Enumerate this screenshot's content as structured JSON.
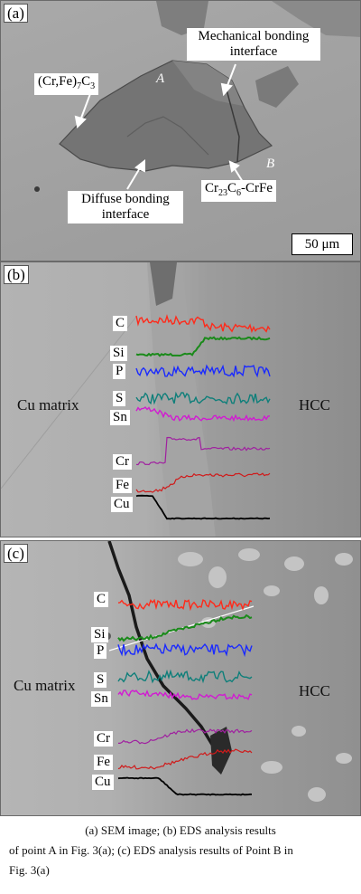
{
  "panel_a": {
    "label": "(a)",
    "callouts": {
      "mechanical": "Mechanical bonding interface",
      "carbide": "(Cr,Fe)7C3",
      "diffuse": "Diffuse bonding interface",
      "cr23": "Cr23C6-CrFe"
    },
    "point_a": "A",
    "point_b": "B",
    "scale_bar": "50 μm"
  },
  "panel_b": {
    "label": "(b)",
    "left_text": "Cu matrix",
    "right_text": "HCC",
    "elements": [
      "C",
      "Si",
      "P",
      "S",
      "Sn",
      "Cr",
      "Fe",
      "Cu"
    ]
  },
  "panel_c": {
    "label": "(c)",
    "left_text": "Cu matrix",
    "right_text": "HCC",
    "elements": [
      "C",
      "Si",
      "P",
      "S",
      "Sn",
      "Cr",
      "Fe",
      "Cu"
    ]
  },
  "caption": {
    "line1": "(a) SEM image; (b) EDS analysis results",
    "line2": "of point A in Fig. 3(a); (c) EDS analysis results of Point B in",
    "line3": "Fig. 3(a)"
  },
  "colors": {
    "C": "#ff2a1a",
    "Si": "#1a8a1a",
    "P": "#1a2aff",
    "S": "#0f7f7a",
    "Sn": "#d21ad2",
    "Cr": "#a020a0",
    "Fe": "#d01a1a",
    "Cu": "#000000"
  }
}
